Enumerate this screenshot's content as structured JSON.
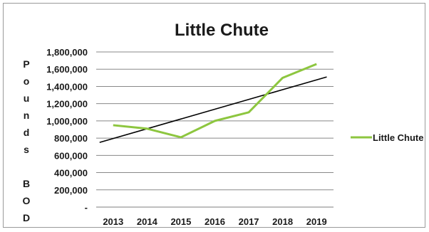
{
  "chart_data": {
    "type": "line",
    "title": "Little Chute",
    "ylabel_chars": [
      "P",
      "o",
      "u",
      "n",
      "d",
      "s",
      "",
      "B",
      "O",
      "D"
    ],
    "categories": [
      "2013",
      "2014",
      "2015",
      "2016",
      "2017",
      "2018",
      "2019"
    ],
    "ylim": [
      0,
      1800000
    ],
    "y_ticks": [
      0,
      200000,
      400000,
      600000,
      800000,
      1000000,
      1200000,
      1400000,
      1600000,
      1800000
    ],
    "y_tick_labels": [
      "-",
      "200,000",
      "400,000",
      "600,000",
      "800,000",
      "1,000,000",
      "1,200,000",
      "1,400,000",
      "1,600,000",
      "1,800,000"
    ],
    "grid": true,
    "legend_position": "right",
    "series": [
      {
        "name": "Little Chute",
        "color": "#8dc63f",
        "values": [
          950000,
          910000,
          810000,
          1000000,
          1100000,
          1500000,
          1660000
        ]
      }
    ],
    "trendline": {
      "color": "#000000",
      "values": [
        750000,
        1510000
      ]
    }
  }
}
